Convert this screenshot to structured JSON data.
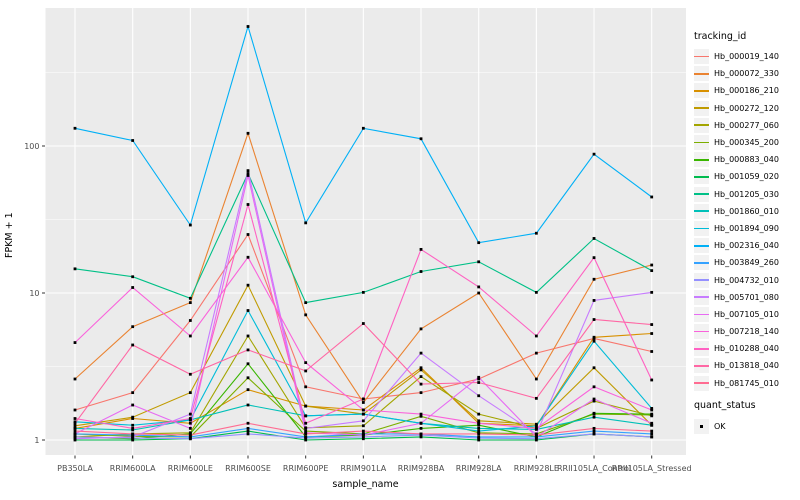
{
  "figure": {
    "background": "#FFFFFF",
    "panel_bg": "#EBEBEB",
    "grid_color": "#FFFFFF",
    "tick_text_color": "#4D4D4D",
    "tick_mark_color": "#333333",
    "marker_color": "#000000"
  },
  "axes": {
    "x_title": "sample_name",
    "y_title": "FPKM + 1",
    "y_tick_labels": [
      "1",
      "10",
      "100"
    ],
    "y_ticks": [
      1,
      10,
      100
    ],
    "y_minor_breaks": [
      3.1623,
      31.623,
      316.23
    ]
  },
  "legend": {
    "tracking_title": "tracking_id",
    "quant_title": "quant_status",
    "quant_items": [
      {
        "label": "OK",
        "shape": "filled-square",
        "color": "#000000"
      }
    ]
  },
  "chart_data": {
    "type": "line",
    "x_scale": "categorical",
    "y_scale": "log10",
    "ylim": [
      1,
      700
    ],
    "grid": "on",
    "legend_position": "right",
    "xlabel": "sample_name",
    "ylabel": "FPKM + 1",
    "x": [
      "PB350LA",
      "RRIM600LA",
      "RRIM600LE",
      "RRIM600SE",
      "RRIM600PE",
      "RRIM901LA",
      "RRIM928BA",
      "RRIM928LA",
      "RRIM928LE",
      "RRII105LA_Control",
      "RRII105LA_Stressed"
    ],
    "series": [
      {
        "name": "Hb_000019_140",
        "color": "#F8766D",
        "values": [
          1.6,
          2.1,
          6.5,
          25,
          2.3,
          1.9,
          2.1,
          2.6,
          3.9,
          4.9,
          4.0
        ]
      },
      {
        "name": "Hb_000072_330",
        "color": "#EA8331",
        "values": [
          2.6,
          5.9,
          8.6,
          122,
          7.1,
          1.8,
          5.7,
          10,
          2.6,
          12.4,
          15.5
        ]
      },
      {
        "name": "Hb_000186_210",
        "color": "#D89000",
        "values": [
          1.2,
          1.4,
          1.3,
          2.2,
          1.7,
          1.6,
          3.1,
          1.3,
          1.25,
          5.0,
          5.3
        ]
      },
      {
        "name": "Hb_000272_120",
        "color": "#C09B00",
        "values": [
          1.25,
          1.43,
          2.1,
          11.3,
          1.7,
          1.5,
          3.0,
          1.35,
          1.28,
          3.1,
          1.26
        ]
      },
      {
        "name": "Hb_000277_060",
        "color": "#A3A500",
        "values": [
          1.05,
          1.1,
          1.12,
          5.1,
          1.21,
          1.25,
          2.7,
          1.5,
          1.2,
          1.84,
          1.46
        ]
      },
      {
        "name": "Hb_000345_200",
        "color": "#7CAE00",
        "values": [
          1.1,
          1.06,
          1.05,
          2.65,
          1.15,
          1.1,
          1.45,
          1.12,
          1.1,
          1.5,
          1.48
        ]
      },
      {
        "name": "Hb_000883_040",
        "color": "#39B600",
        "values": [
          1.05,
          1.02,
          1.1,
          3.3,
          1.05,
          1.08,
          1.2,
          1.26,
          1.05,
          1.52,
          1.5
        ]
      },
      {
        "name": "Hb_001059_020",
        "color": "#00BB4E",
        "values": [
          1.0,
          1.0,
          1.02,
          1.15,
          1.0,
          1.02,
          1.05,
          1.0,
          1.0,
          1.1,
          1.05
        ]
      },
      {
        "name": "Hb_001205_030",
        "color": "#00C087",
        "values": [
          14.6,
          12.9,
          9.2,
          65,
          8.6,
          10.1,
          14.0,
          16.3,
          10.1,
          23.5,
          14.2
        ]
      },
      {
        "name": "Hb_001860_010",
        "color": "#00C0B8",
        "values": [
          1.2,
          1.17,
          1.37,
          1.73,
          1.46,
          1.5,
          1.3,
          1.2,
          1.18,
          1.43,
          1.26
        ]
      },
      {
        "name": "Hb_001894_090",
        "color": "#00BCD8",
        "values": [
          1.33,
          1.26,
          1.37,
          7.6,
          1.46,
          1.5,
          1.3,
          1.15,
          1.25,
          4.7,
          1.64
        ]
      },
      {
        "name": "Hb_002316_040",
        "color": "#00B0F6",
        "values": [
          132,
          109,
          29,
          650,
          30,
          132,
          112,
          22,
          25.5,
          88,
          45
        ]
      },
      {
        "name": "Hb_003849_260",
        "color": "#35A2FF",
        "values": [
          1.1,
          1.08,
          1.05,
          1.2,
          1.05,
          1.1,
          1.1,
          1.05,
          1.05,
          1.15,
          1.1
        ]
      },
      {
        "name": "Hb_004732_010",
        "color": "#9590FF",
        "values": [
          1.05,
          1.03,
          1.02,
          1.1,
          1.03,
          1.05,
          1.08,
          1.03,
          1.02,
          1.1,
          1.05
        ]
      },
      {
        "name": "Hb_005701_080",
        "color": "#C77CFF",
        "values": [
          1.02,
          1.05,
          1.5,
          68,
          1.2,
          1.35,
          3.9,
          2.0,
          1.1,
          8.9,
          10.1
        ]
      },
      {
        "name": "Hb_007105_010",
        "color": "#E76BF3",
        "values": [
          1.1,
          1.73,
          1.2,
          63,
          1.12,
          1.08,
          1.3,
          2.67,
          1.05,
          1.9,
          1.3
        ]
      },
      {
        "name": "Hb_007218_140",
        "color": "#FA62DB",
        "values": [
          4.6,
          10.9,
          5.1,
          17.5,
          3.36,
          1.6,
          1.5,
          1.3,
          1.2,
          2.3,
          1.6
        ]
      },
      {
        "name": "Hb_010288_040",
        "color": "#FF61C2",
        "values": [
          1.4,
          1.2,
          1.4,
          40,
          1.3,
          1.9,
          19.8,
          11,
          5.1,
          17.4,
          2.56
        ]
      },
      {
        "name": "Hb_013818_040",
        "color": "#FF67A4",
        "values": [
          1.3,
          4.43,
          2.8,
          4.1,
          2.95,
          6.2,
          2.4,
          2.46,
          1.92,
          6.6,
          6.1
        ]
      },
      {
        "name": "Hb_081745_010",
        "color": "#FF6C92",
        "values": [
          1.15,
          1.1,
          1.08,
          1.3,
          1.1,
          1.15,
          1.1,
          1.1,
          1.08,
          1.2,
          1.15
        ]
      }
    ]
  }
}
